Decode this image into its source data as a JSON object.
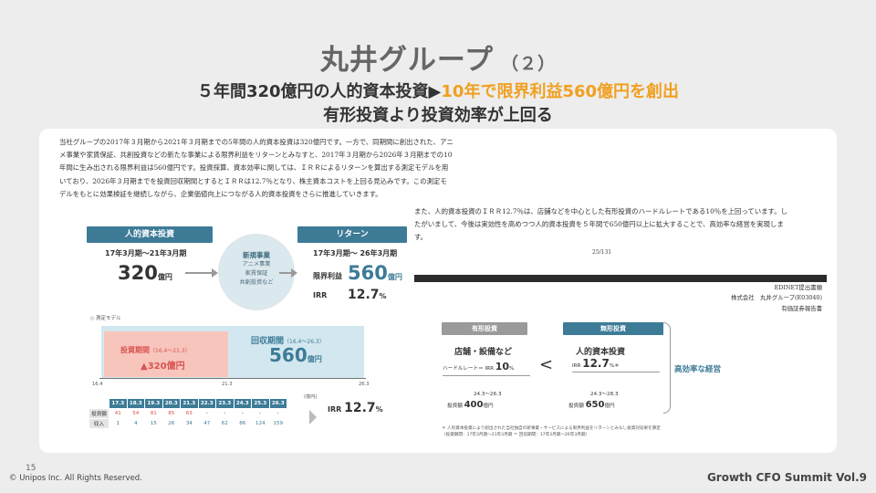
{
  "title": {
    "main": "丸井グループ",
    "sub": "（２）"
  },
  "headline": {
    "part1": "５年間320億円の人的資本投資▶",
    "part2": "10年で限界利益560億円を創出",
    "line2": "有形投資より投資効率が上回る"
  },
  "body_text": {
    "para1": "当社グループの2017年３月期から2021年３月期までの5年間の人的資本投資は320億円です。一方で、同期間に創出された、アニメ事業や家賃保証、共創投資などの新たな事業による限界利益をリターンとみなすと、2017年３月期から2026年３月期までの10年間に生み出される限界利益は560億円です。投資採算、資本効率に関しては、ＩＲＲによるリターンを算出する測定モデルを用いており、2026年３月期までを投資回収期間とするとＩＲＲは12.7％となり、株主資本コストを上回る見込みです。この測定モデルをもとに効果検証を継続しながら、企業価値向上につながる人的資本投資をさらに推進していきます。",
    "para2": "また、人的資本投資のＩＲＲ12.7％は、店舗などを中心とした有形投資のハードルレートである10％を上回っています。したがいまして、今後は実効性を高めつつ人的資本投資を５年間で650億円以上に拡大することで、高効率な経営を実現します。",
    "page_num": "25/131",
    "edinet": [
      "EDINET提出書類",
      "株式会社　丸井グループ(E03040)",
      "有価証券報告書"
    ]
  },
  "diagram": {
    "invest_label": "人的資本投資",
    "invest_period": "17年3月期〜21年3月期",
    "invest_value": "320",
    "invest_unit": "億円",
    "circle_title": "新規事業",
    "circle_items": [
      "アニメ事業",
      "家賃保証",
      "共創投資など"
    ],
    "return_label": "リターン",
    "return_period": "17年3月期〜 26年3月期",
    "return_key": "限界利益",
    "return_value": "560",
    "return_unit": "億円",
    "irr_key": "IRR",
    "irr_value": "12.7",
    "irr_unit": "%"
  },
  "model": {
    "label": "◇ 測定モデル",
    "invest_period_label": "投資期間",
    "invest_period_range": "（16.4〜21.3）",
    "invest_amount": "▲320億円",
    "recover_label": "回収期間",
    "recover_range": "（16.4〜26.3）",
    "recover_value": "560",
    "recover_unit": "億円",
    "ticks": [
      "16.4",
      "21.3",
      "26.3"
    ],
    "unit_note": "(億円)",
    "table_header": [
      "",
      "17.3",
      "18.3",
      "19.3",
      "20.3",
      "21.3",
      "22.3",
      "23.3",
      "24.3",
      "25.3",
      "26.3"
    ],
    "row_invest": [
      "投資額",
      "41",
      "54",
      "81",
      "85",
      "63",
      "-",
      "-",
      "-",
      "-",
      "-"
    ],
    "row_income": [
      "収入",
      "1",
      "4",
      "15",
      "26",
      "34",
      "47",
      "62",
      "86",
      "124",
      "159"
    ],
    "irr_label": "IRR",
    "irr_value": "12.7",
    "irr_unit": "%"
  },
  "compare": {
    "tangible_tag": "有形投資",
    "tangible_title": "店舗・設備など",
    "hurdle_label": "ハードルレート＝ IRR",
    "hurdle_value": "10",
    "hurdle_unit": "%",
    "tangible_period": "24.3〜26.3",
    "tangible_amount_label": "投資額",
    "tangible_amount": "400",
    "tangible_amount_unit": "億円",
    "less_than": "<",
    "intangible_tag": "無形投資",
    "intangible_title": "人的資本投資",
    "intangible_irr_label": "IRR",
    "intangible_irr_value": "12.7",
    "intangible_irr_unit": "%＊",
    "intangible_period": "24.3〜28.3",
    "intangible_amount_label": "投資額",
    "intangible_amount": "650",
    "intangible_amount_unit": "億円",
    "result": "高効率な経営",
    "footnote1": "＊ 人的資本投資により創出された当社独自の新事業・サービスによる限界利益をリターンとみなし投資対効果を算定",
    "footnote2": "（投資期間：17年3月期〜21年3月期 ＝ 回収期間：17年3月期〜26年3月期）"
  },
  "footer": {
    "slide_number": "15",
    "copyright": "© Unipos Inc. All Rights Reserved.",
    "event": "Growth CFO Summit Vol.9"
  }
}
